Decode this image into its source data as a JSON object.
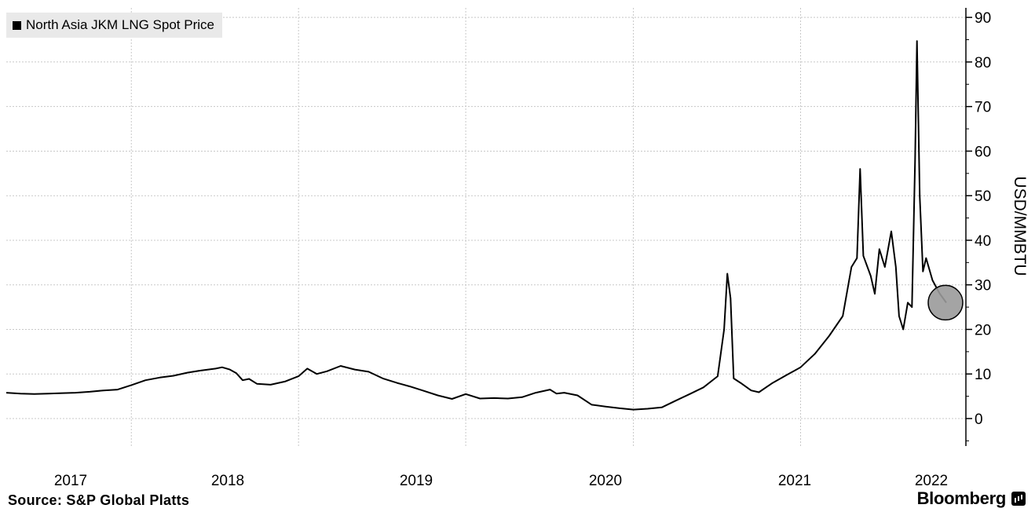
{
  "chart_data": {
    "type": "line",
    "title": "",
    "xlabel": "",
    "ylabel": "USD/MMBTU",
    "ylim": [
      -6,
      93
    ],
    "yticks": [
      0,
      10,
      20,
      30,
      40,
      50,
      60,
      70,
      80,
      90
    ],
    "xticks": [
      "2017",
      "2018",
      "2019",
      "2020",
      "2021",
      "2022"
    ],
    "grid": true,
    "legend_position": "top-left",
    "axis_position": "right",
    "series": [
      {
        "name": "North Asia JKM LNG Spot Price",
        "color": "#000000",
        "points": [
          [
            "2016-10-01",
            5.8
          ],
          [
            "2016-11-01",
            5.6
          ],
          [
            "2016-12-01",
            5.5
          ],
          [
            "2017-01-01",
            5.6
          ],
          [
            "2017-02-01",
            5.7
          ],
          [
            "2017-03-01",
            5.8
          ],
          [
            "2017-04-01",
            6.0
          ],
          [
            "2017-05-01",
            6.3
          ],
          [
            "2017-06-01",
            6.5
          ],
          [
            "2017-07-01",
            7.5
          ],
          [
            "2017-08-01",
            8.6
          ],
          [
            "2017-09-01",
            9.2
          ],
          [
            "2017-10-01",
            9.6
          ],
          [
            "2017-11-01",
            10.3
          ],
          [
            "2017-12-01",
            10.8
          ],
          [
            "2018-01-01",
            11.2
          ],
          [
            "2018-01-15",
            11.5
          ],
          [
            "2018-02-01",
            11.0
          ],
          [
            "2018-02-15",
            10.2
          ],
          [
            "2018-03-01",
            8.6
          ],
          [
            "2018-03-15",
            8.9
          ],
          [
            "2018-04-01",
            7.8
          ],
          [
            "2018-05-01",
            7.6
          ],
          [
            "2018-06-01",
            8.3
          ],
          [
            "2018-07-01",
            9.5
          ],
          [
            "2018-07-20",
            11.2
          ],
          [
            "2018-08-10",
            10.0
          ],
          [
            "2018-09-01",
            10.6
          ],
          [
            "2018-10-01",
            11.8
          ],
          [
            "2018-11-01",
            11.0
          ],
          [
            "2018-12-01",
            10.5
          ],
          [
            "2019-01-01",
            9.0
          ],
          [
            "2019-02-01",
            8.0
          ],
          [
            "2019-03-01",
            7.2
          ],
          [
            "2019-04-01",
            6.2
          ],
          [
            "2019-05-01",
            5.2
          ],
          [
            "2019-06-01",
            4.4
          ],
          [
            "2019-07-01",
            5.5
          ],
          [
            "2019-08-01",
            4.5
          ],
          [
            "2019-09-01",
            4.6
          ],
          [
            "2019-10-01",
            4.5
          ],
          [
            "2019-11-01",
            4.8
          ],
          [
            "2019-12-01",
            5.8
          ],
          [
            "2020-01-01",
            6.5
          ],
          [
            "2020-01-15",
            5.6
          ],
          [
            "2020-02-01",
            5.8
          ],
          [
            "2020-03-01",
            5.2
          ],
          [
            "2020-04-01",
            3.1
          ],
          [
            "2020-05-01",
            2.7
          ],
          [
            "2020-06-01",
            2.3
          ],
          [
            "2020-07-01",
            2.0
          ],
          [
            "2020-08-01",
            2.2
          ],
          [
            "2020-09-01",
            2.5
          ],
          [
            "2020-10-01",
            4.0
          ],
          [
            "2020-11-01",
            5.5
          ],
          [
            "2020-12-01",
            7.0
          ],
          [
            "2021-01-01",
            9.5
          ],
          [
            "2021-01-15",
            20.0
          ],
          [
            "2021-01-22",
            32.5
          ],
          [
            "2021-01-29",
            27.0
          ],
          [
            "2021-02-05",
            9.0
          ],
          [
            "2021-02-20",
            8.0
          ],
          [
            "2021-03-15",
            6.3
          ],
          [
            "2021-04-01",
            5.9
          ],
          [
            "2021-05-01",
            8.0
          ],
          [
            "2021-06-01",
            9.8
          ],
          [
            "2021-07-01",
            11.5
          ],
          [
            "2021-08-01",
            14.5
          ],
          [
            "2021-09-01",
            18.5
          ],
          [
            "2021-10-01",
            23.0
          ],
          [
            "2021-10-20",
            34.0
          ],
          [
            "2021-11-01",
            36.0
          ],
          [
            "2021-11-08",
            56.0
          ],
          [
            "2021-11-15",
            36.5
          ],
          [
            "2021-12-01",
            32.0
          ],
          [
            "2021-12-10",
            28.0
          ],
          [
            "2021-12-20",
            38.0
          ],
          [
            "2022-01-01",
            34.0
          ],
          [
            "2022-01-15",
            42.0
          ],
          [
            "2022-01-25",
            34.0
          ],
          [
            "2022-02-01",
            23.0
          ],
          [
            "2022-02-10",
            20.0
          ],
          [
            "2022-02-20",
            26.0
          ],
          [
            "2022-03-01",
            25.0
          ],
          [
            "2022-03-08",
            58.0
          ],
          [
            "2022-03-12",
            84.7
          ],
          [
            "2022-03-18",
            50.0
          ],
          [
            "2022-03-25",
            33.0
          ],
          [
            "2022-04-01",
            36.0
          ],
          [
            "2022-04-15",
            31.0
          ],
          [
            "2022-05-01",
            28.0
          ],
          [
            "2022-05-15",
            26.0
          ]
        ]
      }
    ]
  },
  "footer": {
    "source": "Source: S&P Global Platts",
    "brand": "Bloomberg"
  },
  "icons": {
    "brand_icon": "bloomberg-terminal-icon",
    "highlight": "latest-value-circle"
  }
}
